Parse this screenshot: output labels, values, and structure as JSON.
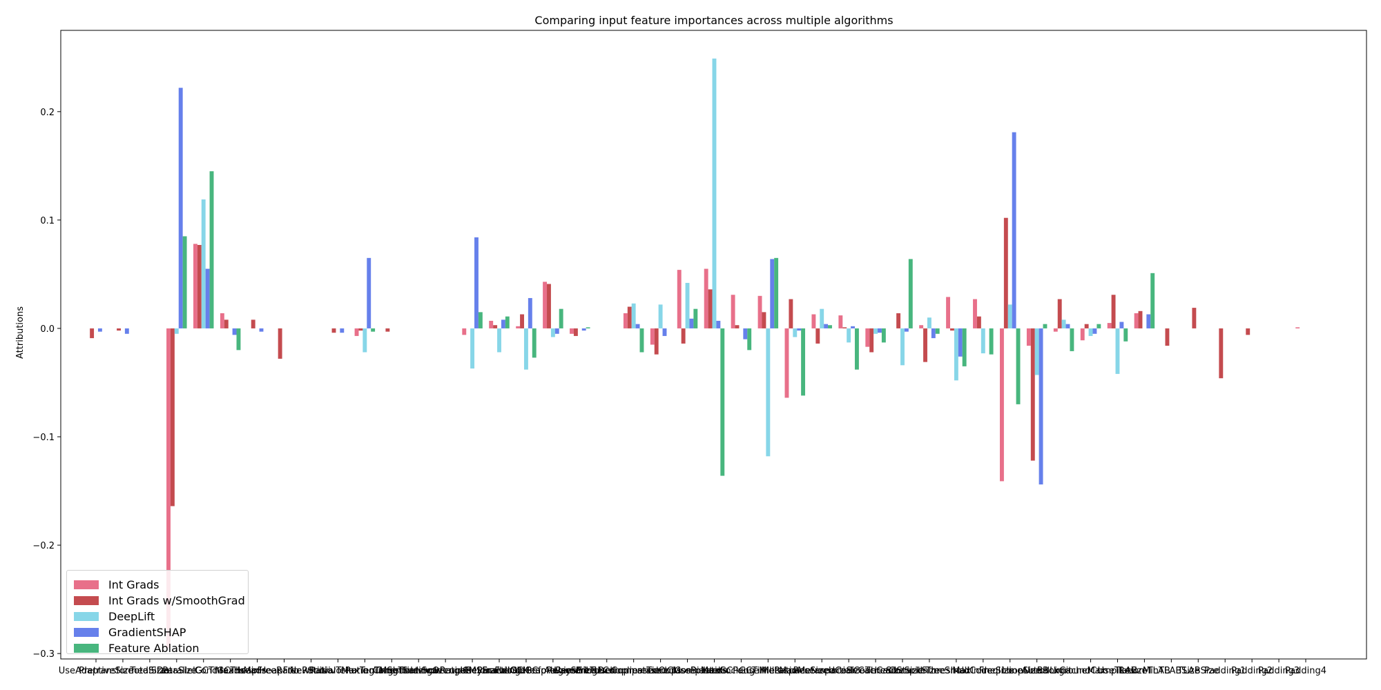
{
  "chart_data": {
    "type": "bar",
    "title": "Comparing input feature importances across multiple algorithms",
    "xlabel": "",
    "ylabel": "Attributions",
    "ylim": [
      -0.305,
      0.275
    ],
    "yticks": [
      -0.3,
      -0.2,
      -0.1,
      0.0,
      0.1,
      0.2
    ],
    "ytick_labels": [
      "−0.3",
      "−0.2",
      "−0.1",
      "0.0",
      "0.1",
      "0.2"
    ],
    "grid": false,
    "legend_placement": "lower-left",
    "categories": [
      "UseAdaptiveSize",
      "PretransformedSize",
      "TotalSize",
      "DataSize",
      "ParallelGCThreads",
      "ConcGCThreads",
      "MaxHeapFreeRatio",
      "MinHeapFreeRatio",
      "NewRatio",
      "SurvivorRatio",
      "InitialTenuringThreshold",
      "MaxTenuringThreshold",
      "TargetSurvivorRatio",
      "CMSInitiatingOccupancyFraction",
      "ScavengeBeforeFullGC",
      "UseParallelOldGC",
      "CMSScavengeBeforeRemark",
      "G1HeapRegionSize",
      "AlwaysPreTouch",
      "UseStringDeduplication",
      "UseCompressedOops",
      "UseCompressedClassPointers",
      "TieredCompilation",
      "UseBiasedLocking",
      "MaxGCPauseMillis",
      "GCTimeRatio",
      "MetaspaceSize",
      "MaxMetaspaceSize",
      "ReservedCodeCacheSize",
      "InitialCodeCacheSize",
      "ThreadStackSize",
      "CompileThreshold",
      "InlineSmallCode",
      "MaxInlineSize",
      "FreqInlineSize",
      "LoopUnrollLimit",
      "AutoBoxCacheMax",
      "BackgroundCompilation",
      "UseTLAB",
      "ResizeTLAB",
      "MinTLABSize",
      "TLABSize",
      "Padding1",
      "Padding2",
      "Padding3",
      "Padding4"
    ],
    "tick_labels": [
      "UseAdaptiveSize",
      "PretransformedSize",
      "TotalSize",
      "DataSize",
      "ParallelGCThreads",
      "ConcGCThreads",
      "MaxHeapFreeRatio",
      "MinHeapFreeRatio",
      "NewRatio",
      "SurvivorRatio",
      "InitialTenuringThreshold",
      "MaxTenuringThreshold",
      "TargetSurvivorRatio",
      "CMSInitiatingOccupancyFraction",
      "ScavengeBeforeFullGC",
      "UseParallelOldGC",
      "CMSScavengeBeforeRemark",
      "G1HeapRegionSize",
      "AlwaysPreTouch",
      "UseStringDeduplication",
      "UseCompressedOops",
      "UseCompressedClassPointers",
      "TieredCompilation",
      "UseBiasedLocking",
      "MaxGCPauseMillis",
      "GCTimeRatio",
      "MetaspaceSize",
      "MaxMetaspaceSize",
      "ReservedCodeCacheSize",
      "InitialCodeCacheSize",
      "ThreadStackSize",
      "CompileThreshold",
      "InlineSmallCode",
      "MaxInlineSize",
      "FreqInlineSize",
      "LoopUnrollLimit",
      "AutoBoxCacheMax",
      "BackgroundCompilation",
      "UseTLAB",
      "ResizeTLAB",
      "MinTLABSize",
      "TLABSize",
      "Padding1",
      "Padding2",
      "Padding3",
      "Padding4"
    ],
    "series": [
      {
        "name": "Int Grads",
        "color": "#E8708A",
        "values": [
          0,
          0,
          0,
          -0.295,
          0.078,
          0.014,
          0,
          0,
          0,
          0,
          -0.007,
          0,
          0,
          0,
          -0.006,
          0.007,
          0.002,
          0.043,
          -0.005,
          0,
          0.014,
          -0.015,
          0.054,
          0.055,
          0.031,
          0.03,
          -0.064,
          0.013,
          0.012,
          -0.017,
          0,
          0.003,
          0.029,
          0.027,
          -0.141,
          -0.016,
          -0.003,
          -0.011,
          0.005,
          0.014,
          0,
          0,
          0,
          0,
          0,
          0.001
        ]
      },
      {
        "name": "Int Grads w/SmoothGrad",
        "color": "#C44B4F",
        "values": [
          -0.009,
          -0.002,
          0,
          -0.164,
          0.077,
          0.008,
          0.008,
          -0.028,
          0,
          -0.004,
          -0.002,
          -0.003,
          0,
          0,
          0,
          0.003,
          0.013,
          0.041,
          -0.007,
          0,
          0.02,
          -0.024,
          -0.014,
          0.036,
          0.003,
          0.015,
          0.027,
          -0.014,
          0.001,
          -0.022,
          0.014,
          -0.031,
          -0.002,
          0.011,
          0.102,
          -0.122,
          0.027,
          0.004,
          0.031,
          0.016,
          -0.016,
          0.019,
          -0.046,
          -0.006,
          0,
          0
        ]
      },
      {
        "name": "DeepLift",
        "color": "#87D6E8",
        "values": [
          0,
          0,
          0,
          -0.005,
          0.119,
          0,
          0,
          0,
          0,
          0,
          -0.022,
          0,
          0,
          0,
          -0.037,
          -0.022,
          -0.038,
          -0.008,
          0,
          0,
          0.023,
          0.022,
          0.042,
          0.249,
          0,
          -0.118,
          -0.008,
          0.018,
          -0.013,
          -0.005,
          -0.034,
          0.01,
          -0.048,
          -0.023,
          0.022,
          -0.043,
          0.008,
          -0.007,
          -0.042,
          0,
          0,
          0,
          0,
          0,
          0,
          0
        ]
      },
      {
        "name": "GradientSHAP",
        "color": "#6680EB",
        "values": [
          -0.003,
          -0.005,
          0,
          0.222,
          0.055,
          -0.006,
          -0.003,
          0,
          0,
          -0.004,
          0.065,
          0,
          0,
          0,
          0.084,
          0.008,
          0.028,
          -0.005,
          -0.002,
          0,
          0.004,
          -0.007,
          0.009,
          0.007,
          -0.01,
          0.064,
          -0.002,
          0.004,
          0.002,
          -0.004,
          -0.003,
          -0.009,
          -0.026,
          0,
          0.181,
          -0.144,
          0.004,
          -0.005,
          0.006,
          0.013,
          0,
          0,
          0,
          0,
          0,
          0
        ]
      },
      {
        "name": "Feature Ablation",
        "color": "#48B67E",
        "values": [
          0,
          0,
          0,
          0.085,
          0.145,
          -0.02,
          0,
          0,
          0,
          0,
          -0.003,
          0,
          0,
          0,
          0.015,
          0.011,
          -0.027,
          0.018,
          0.001,
          0,
          -0.022,
          0,
          0.018,
          -0.136,
          -0.02,
          0.065,
          -0.062,
          0.003,
          -0.038,
          -0.013,
          0.064,
          -0.005,
          -0.035,
          -0.024,
          -0.07,
          0.004,
          -0.021,
          0.004,
          -0.012,
          0.051,
          0,
          0,
          0,
          0,
          0,
          0
        ]
      }
    ]
  }
}
